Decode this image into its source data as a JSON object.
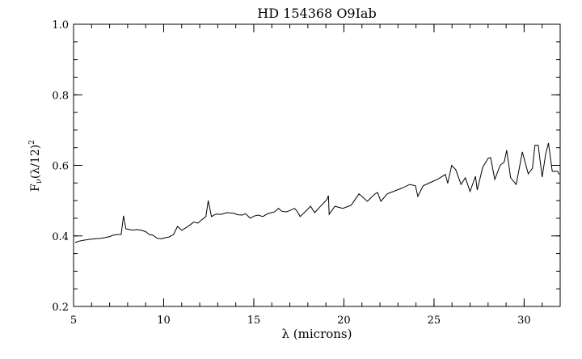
{
  "chart_data": {
    "type": "line",
    "title": "HD 154368 O9Iab",
    "xlabel": "λ (microns)",
    "ylabel_main": "F",
    "ylabel_sub": "ν",
    "ylabel_rest": "(λ/12)",
    "ylabel_sup": "2",
    "xlim": [
      5,
      32
    ],
    "ylim": [
      0.2,
      1.0
    ],
    "xticks": [
      5,
      10,
      15,
      20,
      25,
      30
    ],
    "xtick_labels": [
      "5",
      "10",
      "15",
      "20",
      "25",
      "30"
    ],
    "x_minor_step": 1,
    "yticks": [
      0.2,
      0.4,
      0.6,
      0.8,
      1.0
    ],
    "ytick_labels": [
      "0.2",
      "0.4",
      "0.6",
      "0.8",
      "1.0"
    ],
    "y_minor_step": 0.05,
    "grid": false,
    "line_color": "#000000",
    "series": [
      {
        "x": [
          5.09,
          5.3,
          5.5,
          5.85,
          6.2,
          6.5,
          6.74,
          7.0,
          7.2,
          7.42,
          7.64,
          7.77,
          7.9,
          8.1,
          8.3,
          8.5,
          8.76,
          9.0,
          9.2,
          9.4,
          9.65,
          9.9,
          10.1,
          10.3,
          10.55,
          10.77,
          11.0,
          11.3,
          11.67,
          11.9,
          12.1,
          12.34,
          12.47,
          12.65,
          12.9,
          13.2,
          13.5,
          13.9,
          14.1,
          14.35,
          14.55,
          14.8,
          15.0,
          15.25,
          15.5,
          15.7,
          15.9,
          16.14,
          16.37,
          16.55,
          16.8,
          17.0,
          17.26,
          17.4,
          17.57,
          17.84,
          18.15,
          18.38,
          18.7,
          19.05,
          19.14,
          19.18,
          19.5,
          19.94,
          20.4,
          20.84,
          21.3,
          21.73,
          21.87,
          22.05,
          22.4,
          22.85,
          23.2,
          23.66,
          23.97,
          24.1,
          24.4,
          24.87,
          25.18,
          25.63,
          25.76,
          25.98,
          26.2,
          26.5,
          26.74,
          27.0,
          27.3,
          27.4,
          27.7,
          28.0,
          28.14,
          28.37,
          28.67,
          28.9,
          29.03,
          29.25,
          29.56,
          29.8,
          29.9,
          30.23,
          30.46,
          30.6,
          30.78,
          31.0,
          31.2,
          31.35,
          31.56,
          31.85,
          31.95
        ],
        "y": [
          0.381,
          0.385,
          0.387,
          0.39,
          0.392,
          0.393,
          0.395,
          0.398,
          0.402,
          0.404,
          0.404,
          0.457,
          0.42,
          0.418,
          0.416,
          0.418,
          0.416,
          0.412,
          0.404,
          0.402,
          0.393,
          0.392,
          0.395,
          0.397,
          0.404,
          0.427,
          0.416,
          0.425,
          0.439,
          0.436,
          0.445,
          0.455,
          0.5,
          0.455,
          0.462,
          0.461,
          0.466,
          0.464,
          0.46,
          0.459,
          0.463,
          0.45,
          0.456,
          0.459,
          0.455,
          0.461,
          0.465,
          0.468,
          0.478,
          0.47,
          0.468,
          0.472,
          0.478,
          0.47,
          0.455,
          0.468,
          0.484,
          0.466,
          0.484,
          0.503,
          0.514,
          0.461,
          0.484,
          0.478,
          0.487,
          0.519,
          0.498,
          0.519,
          0.523,
          0.498,
          0.519,
          0.528,
          0.535,
          0.546,
          0.542,
          0.512,
          0.542,
          0.553,
          0.56,
          0.574,
          0.549,
          0.6,
          0.588,
          0.546,
          0.565,
          0.526,
          0.569,
          0.53,
          0.594,
          0.62,
          0.622,
          0.56,
          0.6,
          0.61,
          0.643,
          0.565,
          0.546,
          0.61,
          0.638,
          0.576,
          0.592,
          0.657,
          0.657,
          0.567,
          0.634,
          0.663,
          0.583,
          0.583,
          0.574
        ]
      }
    ]
  }
}
